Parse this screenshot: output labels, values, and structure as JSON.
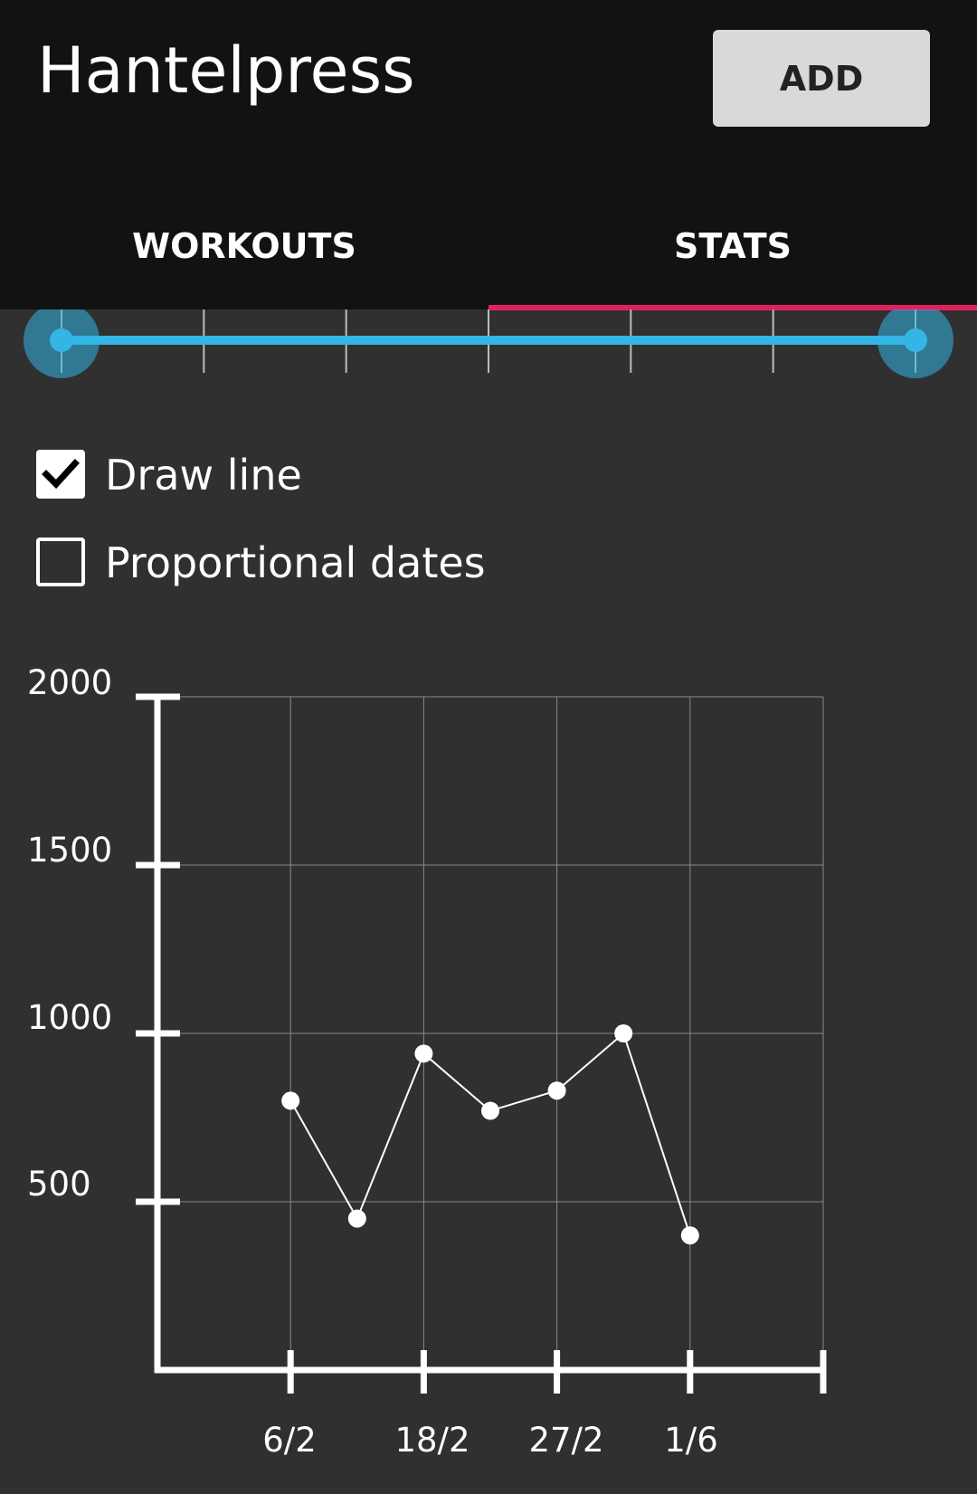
{
  "app": {
    "title": "Hantelpress",
    "add_label": "ADD"
  },
  "tabs": [
    {
      "label": "WORKOUTS",
      "active": false
    },
    {
      "label": "STATS",
      "active": true
    }
  ],
  "colors": {
    "accent_tab": "#e0215f",
    "slider": "#33b5e5",
    "background": "#303030",
    "header": "#121212"
  },
  "range_slider": {
    "steps": 6,
    "low": 0,
    "high": 6
  },
  "options": {
    "draw_line": {
      "label": "Draw line",
      "checked": true
    },
    "proportional_dates": {
      "label": "Proportional dates",
      "checked": false
    }
  },
  "chart_data": {
    "type": "line",
    "title": "",
    "xlabel": "",
    "ylabel": "",
    "ylim": [
      0,
      2000
    ],
    "yticks": [
      "2000",
      "1500",
      "1000",
      "500"
    ],
    "x_tick_labels": [
      "6/2",
      "18/2",
      "27/2",
      "1/6"
    ],
    "x_points": [
      1,
      1.5,
      2,
      2.5,
      3,
      3.5,
      4
    ],
    "xlim": [
      0,
      5
    ],
    "series": [
      {
        "values": [
          800,
          450,
          940,
          770,
          830,
          1000,
          400
        ]
      }
    ],
    "grid": true,
    "legend": "none"
  }
}
